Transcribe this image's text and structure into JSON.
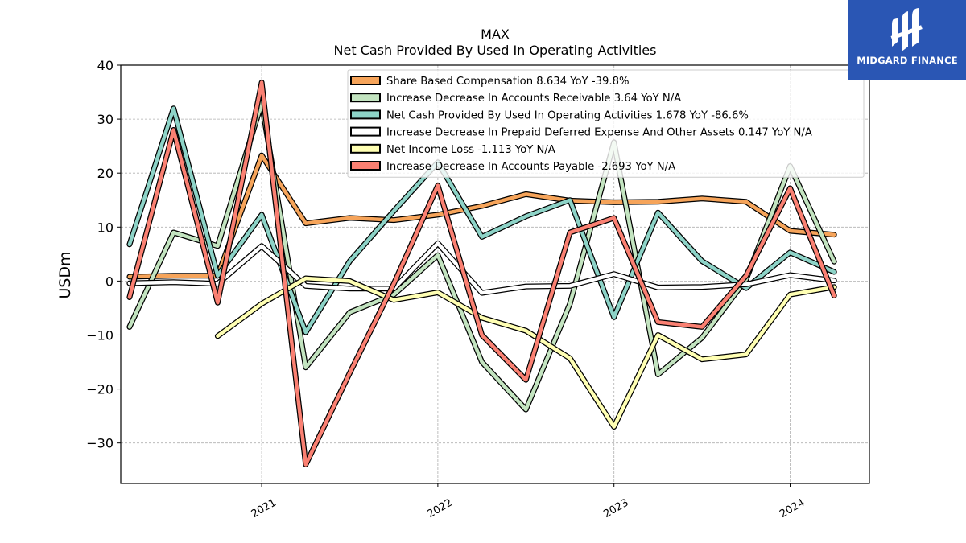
{
  "chart_data": {
    "type": "line",
    "title": "MAX",
    "subtitle": "Net Cash Provided By Used In Operating Activities",
    "ylabel": "USDm",
    "xlabel": "",
    "ylim": [
      -37.5,
      40
    ],
    "xlim": [
      2020.2,
      2024.45
    ],
    "yticks": [
      40,
      30,
      20,
      10,
      0,
      -10,
      -20,
      -30
    ],
    "ytick_labels": [
      "40",
      "30",
      "20",
      "10",
      "0",
      "−10",
      "−20",
      "−30"
    ],
    "xticks": [
      2021,
      2022,
      2023,
      2024
    ],
    "xtick_labels": [
      "2021",
      "2022",
      "2023",
      "2024"
    ],
    "grid": true,
    "legend_position": "top-right",
    "series": [
      {
        "name": "Share Based Compensation  8.634 YoY -39.8%",
        "color": "#f6a45a",
        "x": [
          2020.25,
          2020.5,
          2020.75,
          2021.0,
          2021.25,
          2021.5,
          2021.75,
          2022.0,
          2022.25,
          2022.5,
          2022.75,
          2023.0,
          2023.25,
          2023.5,
          2023.75,
          2024.0,
          2024.25
        ],
        "y": [
          0.8,
          1.0,
          1.0,
          23.3,
          10.7,
          11.7,
          11.3,
          12.3,
          13.9,
          16.1,
          14.9,
          14.6,
          14.7,
          15.3,
          14.7,
          9.3,
          8.6
        ]
      },
      {
        "name": "Increase Decrease In Accounts Receivable  3.64 YoY N/A",
        "color": "#c3e4c0",
        "x": [
          2020.25,
          2020.5,
          2020.75,
          2021.0,
          2021.25,
          2021.5,
          2021.75,
          2022.0,
          2022.25,
          2022.5,
          2022.75,
          2023.0,
          2023.25,
          2023.5,
          2023.75,
          2024.0,
          2024.25
        ],
        "y": [
          -8.5,
          9.0,
          6.5,
          33.0,
          -16.0,
          -5.8,
          -2.5,
          4.8,
          -15.0,
          -23.8,
          -4.2,
          25.7,
          -17.3,
          -10.5,
          0.3,
          21.3,
          3.6
        ]
      },
      {
        "name": "Net Cash Provided By Used In Operating Activities  1.678 YoY -86.6%",
        "color": "#8dd3c7",
        "x": [
          2020.25,
          2020.5,
          2020.75,
          2021.0,
          2021.25,
          2021.5,
          2021.75,
          2022.0,
          2022.25,
          2022.5,
          2022.75,
          2023.0,
          2023.25,
          2023.5,
          2023.75,
          2024.0,
          2024.25
        ],
        "y": [
          6.8,
          32.0,
          1.0,
          12.3,
          -9.5,
          3.7,
          13.0,
          22.0,
          8.2,
          12.0,
          15.0,
          -6.7,
          12.7,
          3.7,
          -1.3,
          5.3,
          1.7
        ]
      },
      {
        "name": "Increase Decrease In Prepaid Deferred Expense And Other Assets  0.147 YoY N/A",
        "color": "#ffffff",
        "x": [
          2020.25,
          2020.5,
          2020.75,
          2021.0,
          2021.25,
          2021.5,
          2021.75,
          2022.0,
          2022.25,
          2022.5,
          2022.75,
          2023.0,
          2023.25,
          2023.5,
          2023.75,
          2024.0,
          2024.25
        ],
        "y": [
          -0.4,
          -0.2,
          -0.5,
          6.5,
          -0.9,
          -1.4,
          -1.4,
          7.0,
          -2.2,
          -1.0,
          -0.9,
          1.3,
          -1.2,
          -1.1,
          -0.6,
          1.1,
          0.1
        ]
      },
      {
        "name": "Net Income Loss  -1.113 YoY N/A",
        "color": "#ffffb3",
        "x": [
          2020.75,
          2021.0,
          2021.25,
          2021.5,
          2021.75,
          2022.0,
          2022.25,
          2022.5,
          2022.75,
          2023.0,
          2023.25,
          2023.5,
          2023.75,
          2024.0,
          2024.25
        ],
        "y": [
          -10.2,
          -4.2,
          0.5,
          0.0,
          -3.5,
          -2.1,
          -6.8,
          -9.2,
          -14.3,
          -27.0,
          -10.0,
          -14.5,
          -13.6,
          -2.5,
          -1.1
        ]
      },
      {
        "name": "Increase Decrease In Accounts Payable  -2.693 YoY N/A",
        "color": "#fa8072",
        "x": [
          2020.25,
          2020.5,
          2020.75,
          2021.0,
          2021.25,
          2021.5,
          2021.75,
          2022.0,
          2022.25,
          2022.5,
          2022.75,
          2023.0,
          2023.25,
          2023.5,
          2023.75,
          2024.0,
          2024.25
        ],
        "y": [
          -3.0,
          28.0,
          -4.0,
          36.8,
          -34.0,
          -17.0,
          -0.5,
          17.7,
          -10.0,
          -18.3,
          9.0,
          11.7,
          -7.6,
          -8.5,
          1.0,
          17.2,
          -2.7
        ]
      }
    ]
  },
  "logo": {
    "text": "MIDGARD FINANCE",
    "color": "#2a56b4"
  }
}
